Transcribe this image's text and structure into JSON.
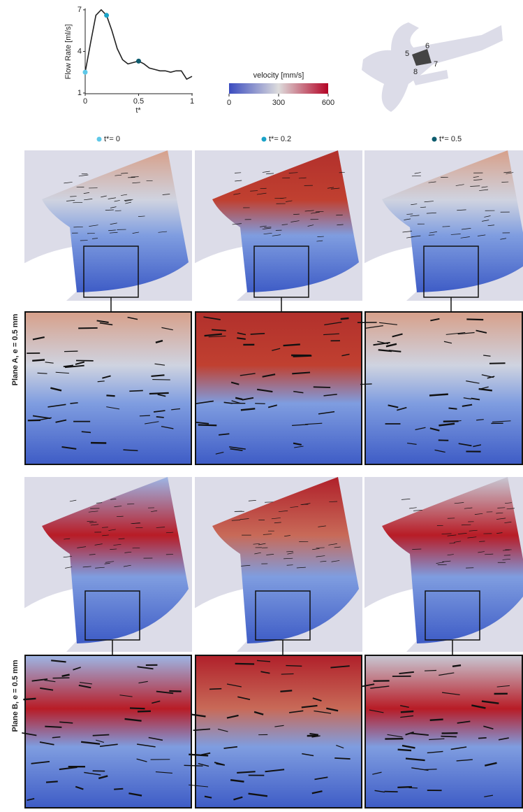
{
  "chart_data": {
    "type": "line",
    "ylabel": "Flow Rate [ml/s]",
    "xlabel": "t*",
    "x": [
      0,
      0.05,
      0.1,
      0.15,
      0.2,
      0.25,
      0.3,
      0.35,
      0.4,
      0.45,
      0.5,
      0.55,
      0.6,
      0.65,
      0.7,
      0.75,
      0.8,
      0.85,
      0.9,
      0.95,
      1
    ],
    "series": [
      {
        "color": "#222222",
        "values": [
          2.5,
          4.6,
          6.6,
          7.0,
          6.6,
          5.5,
          4.2,
          3.4,
          3.1,
          3.2,
          3.3,
          3.1,
          2.8,
          2.7,
          2.6,
          2.6,
          2.5,
          2.6,
          2.6,
          2.0,
          2.2
        ]
      }
    ],
    "highlights": {
      "x": [
        0,
        0.2,
        0.5
      ],
      "values": [
        2.5,
        6.6,
        3.3
      ],
      "colors": [
        "#5ec8e8",
        "#1aa3c8",
        "#0d5c6e"
      ]
    },
    "xlim": [
      0,
      1
    ],
    "ylim": [
      1,
      7
    ],
    "xticks": [
      0,
      0.5,
      1
    ],
    "yticks": [
      1,
      4,
      7
    ]
  },
  "colorbar": {
    "title": "velocity [mm/s]",
    "lim": [
      0,
      600
    ],
    "ticks": [
      0,
      300,
      600
    ]
  },
  "vessel_labels": [
    "5",
    "6",
    "7",
    "8"
  ],
  "time_labels": [
    "t*= 0",
    "t*= 0.2",
    "t*= 0.5"
  ],
  "row_labels": [
    "Plane A, e = 0.5 mm",
    "Plane B, e = 0.5 mm"
  ]
}
